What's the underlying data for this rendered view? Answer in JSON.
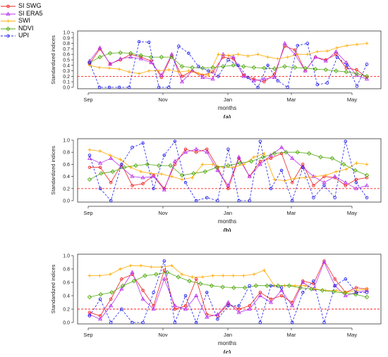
{
  "legend": {
    "items": [
      {
        "label": "SI SWG",
        "color": "#ee2222",
        "marker": "circle"
      },
      {
        "label": "SI ERA5",
        "color": "#bb33ee",
        "marker": "triangle"
      },
      {
        "label": "SWI",
        "color": "#ffaa00",
        "marker": "plus"
      },
      {
        "label": "NDVI",
        "color": "#55aa11",
        "marker": "diamond"
      },
      {
        "label": "UPI",
        "color": "#2222ee",
        "marker": "circle",
        "dashed": true
      }
    ]
  },
  "chart_data": [
    {
      "type": "line",
      "panel_label": "(a)",
      "xlabel": "months",
      "ylabel": "Standardized indices",
      "ylim": [
        0,
        1
      ],
      "y_ticks": [
        "0.0",
        "0.1",
        "0.2",
        "0.3",
        "0.4",
        "0.5",
        "0.6",
        "0.7",
        "0.8",
        "0.9",
        "1.0"
      ],
      "x_ticks": [
        "Sep",
        "Nov",
        "Jan",
        "Mar",
        "May"
      ],
      "threshold": 0.2,
      "series": [
        {
          "name": "SI SWG",
          "values": [
            0.43,
            0.7,
            0.43,
            0.5,
            0.6,
            0.55,
            0.48,
            0.18,
            0.58,
            0.2,
            0.3,
            0.22,
            0.28,
            0.55,
            0.52,
            0.22,
            0.15,
            0.1,
            0.24,
            0.75,
            0.68,
            0.3,
            0.55,
            0.5,
            0.6,
            0.35,
            0.32,
            0.18
          ]
        },
        {
          "name": "SI ERA5",
          "values": [
            0.48,
            0.72,
            0.42,
            0.52,
            0.55,
            0.52,
            0.45,
            0.22,
            0.6,
            0.1,
            0.3,
            0.18,
            0.15,
            0.6,
            0.55,
            0.2,
            0.12,
            0.15,
            0.18,
            0.8,
            0.6,
            0.3,
            0.55,
            0.48,
            0.65,
            0.45,
            0.22,
            0.15
          ]
        },
        {
          "name": "SWI",
          "values": [
            0.4,
            0.36,
            0.35,
            0.33,
            0.28,
            0.25,
            0.3,
            0.3,
            0.32,
            0.28,
            0.3,
            0.25,
            0.22,
            0.6,
            0.58,
            0.6,
            0.57,
            0.6,
            0.55,
            0.52,
            0.55,
            0.6,
            0.6,
            0.65,
            0.66,
            0.72,
            0.76,
            0.78,
            0.8
          ]
        },
        {
          "name": "NDVI",
          "values": [
            0.45,
            0.55,
            0.62,
            0.63,
            0.62,
            0.58,
            0.55,
            0.55,
            0.55,
            0.38,
            0.36,
            0.35,
            0.36,
            0.38,
            0.4,
            0.38,
            0.36,
            0.35,
            0.34,
            0.38,
            0.36,
            0.35,
            0.33,
            0.32,
            0.3,
            0.28,
            0.25,
            0.2
          ]
        },
        {
          "name": "UPI",
          "values": [
            0.45,
            0.0,
            0.0,
            0.0,
            0.0,
            0.83,
            0.82,
            0.0,
            0.0,
            0.75,
            0.62,
            0.38,
            0.3,
            0.2,
            0.5,
            0.4,
            0.18,
            0.0,
            0.4,
            0.12,
            0.0,
            0.76,
            0.8,
            0.05,
            0.08,
            0.55,
            0.4,
            0.02,
            0.42
          ]
        }
      ]
    },
    {
      "type": "line",
      "panel_label": "(b)",
      "xlabel": "months",
      "ylabel": "Standardized indices",
      "ylim": [
        0,
        1
      ],
      "y_ticks": [
        "0.0",
        "0.2",
        "0.4",
        "0.6",
        "0.8",
        "1.0"
      ],
      "x_ticks": [
        "Sep",
        "Nov",
        "Jan",
        "Mar",
        "May"
      ],
      "threshold": 0.2,
      "series": [
        {
          "name": "SI SWG",
          "values": [
            0.55,
            0.55,
            0.3,
            0.6,
            0.25,
            0.28,
            0.42,
            0.2,
            0.6,
            0.85,
            0.8,
            0.85,
            0.55,
            0.2,
            0.7,
            0.4,
            0.65,
            0.7,
            0.78,
            0.3,
            0.6,
            0.25,
            0.4,
            0.38,
            0.25,
            0.35,
            0.38
          ]
        },
        {
          "name": "SI ERA5",
          "values": [
            0.7,
            0.62,
            0.7,
            0.55,
            0.4,
            0.38,
            0.4,
            0.18,
            0.65,
            0.8,
            0.85,
            0.8,
            0.5,
            0.25,
            0.72,
            0.4,
            0.6,
            0.75,
            0.88,
            0.7,
            0.55,
            0.4,
            0.3,
            0.4,
            0.3,
            0.2,
            0.25
          ]
        },
        {
          "name": "SWI",
          "values": [
            0.84,
            0.82,
            0.75,
            0.68,
            0.55,
            0.48,
            0.45,
            0.44,
            0.4,
            0.35,
            0.38,
            0.6,
            0.6,
            0.55,
            0.55,
            0.6,
            0.72,
            0.78,
            0.35,
            0.33,
            0.37,
            0.38,
            0.4,
            0.42,
            0.48,
            0.52,
            0.62,
            0.6
          ]
        },
        {
          "name": "NDVI",
          "values": [
            0.35,
            0.45,
            0.48,
            0.55,
            0.58,
            0.6,
            0.58,
            0.58,
            0.42,
            0.45,
            0.48,
            0.55,
            0.58,
            0.62,
            0.65,
            0.72,
            0.78,
            0.8,
            0.8,
            0.78,
            0.72,
            0.7,
            0.6,
            0.5,
            0.42
          ]
        },
        {
          "name": "UPI",
          "values": [
            0.75,
            0.2,
            0.0,
            0.6,
            0.88,
            0.95,
            0.2,
            0.75,
            0.98,
            0.3,
            0.0,
            0.05,
            0.0,
            0.85,
            0.0,
            0.0,
            0.98,
            0.2,
            0.5,
            0.0,
            0.55,
            0.05,
            0.25,
            0.05,
            0.98,
            0.3,
            0.05
          ]
        }
      ]
    },
    {
      "type": "line",
      "panel_label": "(c)",
      "xlabel": "months",
      "ylabel": "Standardized indices",
      "ylim": [
        0,
        1
      ],
      "y_ticks": [
        "0.0",
        "0.2",
        "0.4",
        "0.6",
        "0.8",
        "1.0"
      ],
      "x_ticks": [
        "Sep",
        "Nov",
        "Jan",
        "Mar",
        "May"
      ],
      "threshold": 0.2,
      "series": [
        {
          "name": "SI SWG",
          "values": [
            0.15,
            0.1,
            0.35,
            0.65,
            0.72,
            0.48,
            0.25,
            0.78,
            0.2,
            0.25,
            0.65,
            0.12,
            0.1,
            0.28,
            0.2,
            0.25,
            0.45,
            0.35,
            0.4,
            0.3,
            0.62,
            0.58,
            0.92,
            0.65,
            0.45,
            0.52,
            0.5
          ]
        },
        {
          "name": "SI ERA5",
          "values": [
            0.12,
            0.05,
            0.25,
            0.5,
            0.75,
            0.35,
            0.2,
            0.65,
            0.25,
            0.2,
            0.4,
            0.08,
            0.12,
            0.3,
            0.15,
            0.2,
            0.4,
            0.3,
            0.48,
            0.25,
            0.6,
            0.5,
            0.9,
            0.55,
            0.4,
            0.45,
            0.48
          ]
        },
        {
          "name": "SWI",
          "values": [
            0.7,
            0.7,
            0.72,
            0.8,
            0.85,
            0.85,
            0.83,
            0.83,
            0.85,
            0.72,
            0.68,
            0.68,
            0.7,
            0.7,
            0.7,
            0.7,
            0.72,
            0.78,
            0.55,
            0.55,
            0.55,
            0.55,
            0.5,
            0.48,
            0.48,
            0.45,
            0.48,
            0.5
          ]
        },
        {
          "name": "NDVI",
          "values": [
            0.38,
            0.42,
            0.45,
            0.55,
            0.62,
            0.7,
            0.72,
            0.75,
            0.68,
            0.62,
            0.58,
            0.55,
            0.53,
            0.52,
            0.52,
            0.55,
            0.55,
            0.55,
            0.55,
            0.52,
            0.5,
            0.48,
            0.46,
            0.44,
            0.42,
            0.38
          ]
        },
        {
          "name": "UPI",
          "values": [
            0.1,
            0.35,
            0.0,
            0.2,
            0.0,
            0.0,
            0.45,
            0.92,
            0.0,
            0.4,
            0.0,
            0.45,
            0.05,
            0.25,
            0.25,
            0.55,
            0.0,
            0.55,
            0.52,
            0.0,
            0.45,
            0.62,
            0.0,
            0.55,
            0.65,
            0.45,
            0.45
          ]
        }
      ]
    }
  ]
}
